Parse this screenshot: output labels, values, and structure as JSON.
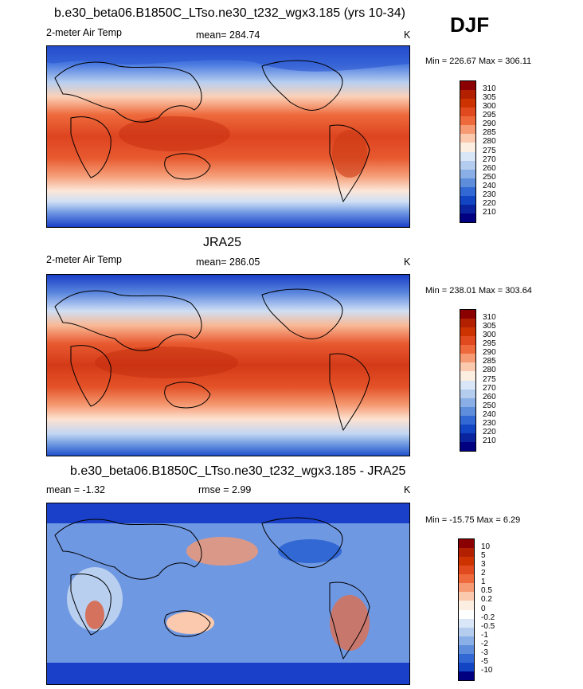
{
  "season": "DJF",
  "panels": [
    {
      "title": "b.e30_beta06.B1850C_LTso.ne30_t232_wgx3.185 (yrs 10-34)",
      "variable": "2-meter Air Temp",
      "stat": "mean= 284.74",
      "units": "K",
      "minmax": "Min = 226.67 Max = 306.11",
      "colorbar_labels": [
        "310",
        "305",
        "300",
        "295",
        "290",
        "285",
        "280",
        "275",
        "270",
        "260",
        "250",
        "240",
        "230",
        "220",
        "210"
      ],
      "colorbar_colors": [
        "#8b0000",
        "#b22000",
        "#cc3300",
        "#e04a1e",
        "#ee6a3c",
        "#f59a72",
        "#fbc9ad",
        "#fdeee2",
        "#d8e6f7",
        "#b4cdef",
        "#89afe6",
        "#5e8ddc",
        "#3268d3",
        "#1245c4",
        "#0a24a0",
        "#000080"
      ]
    },
    {
      "title": "JRA25",
      "variable": "2-meter Air Temp",
      "stat": "mean= 286.05",
      "units": "K",
      "minmax": "Min = 238.01 Max = 303.64",
      "colorbar_labels": [
        "310",
        "305",
        "300",
        "295",
        "290",
        "285",
        "280",
        "275",
        "270",
        "260",
        "250",
        "240",
        "230",
        "220",
        "210"
      ],
      "colorbar_colors": [
        "#8b0000",
        "#b22000",
        "#cc3300",
        "#e04a1e",
        "#ee6a3c",
        "#f59a72",
        "#fbc9ad",
        "#fdeee2",
        "#d8e6f7",
        "#b4cdef",
        "#89afe6",
        "#5e8ddc",
        "#3268d3",
        "#1245c4",
        "#0a24a0",
        "#000080"
      ]
    },
    {
      "title": "b.e30_beta06.B1850C_LTso.ne30_t232_wgx3.185 - JRA25",
      "variable": "mean =  -1.32",
      "stat": "rmse =   2.99",
      "units": "K",
      "minmax": "Min = -15.75 Max =   6.29",
      "colorbar_labels": [
        "10",
        "5",
        "3",
        "2",
        "1",
        "0.5",
        "0.2",
        "0",
        "-0.2",
        "-0.5",
        "-1",
        "-2",
        "-3",
        "-5",
        "-10"
      ],
      "colorbar_colors": [
        "#8b0000",
        "#b22000",
        "#cc3300",
        "#e04a1e",
        "#ee6a3c",
        "#f59a72",
        "#fbc9ad",
        "#fdeee2",
        "#ffffff",
        "#d8e6f7",
        "#b4cdef",
        "#89afe6",
        "#5e8ddc",
        "#3268d3",
        "#1245c4",
        "#000080"
      ]
    }
  ]
}
